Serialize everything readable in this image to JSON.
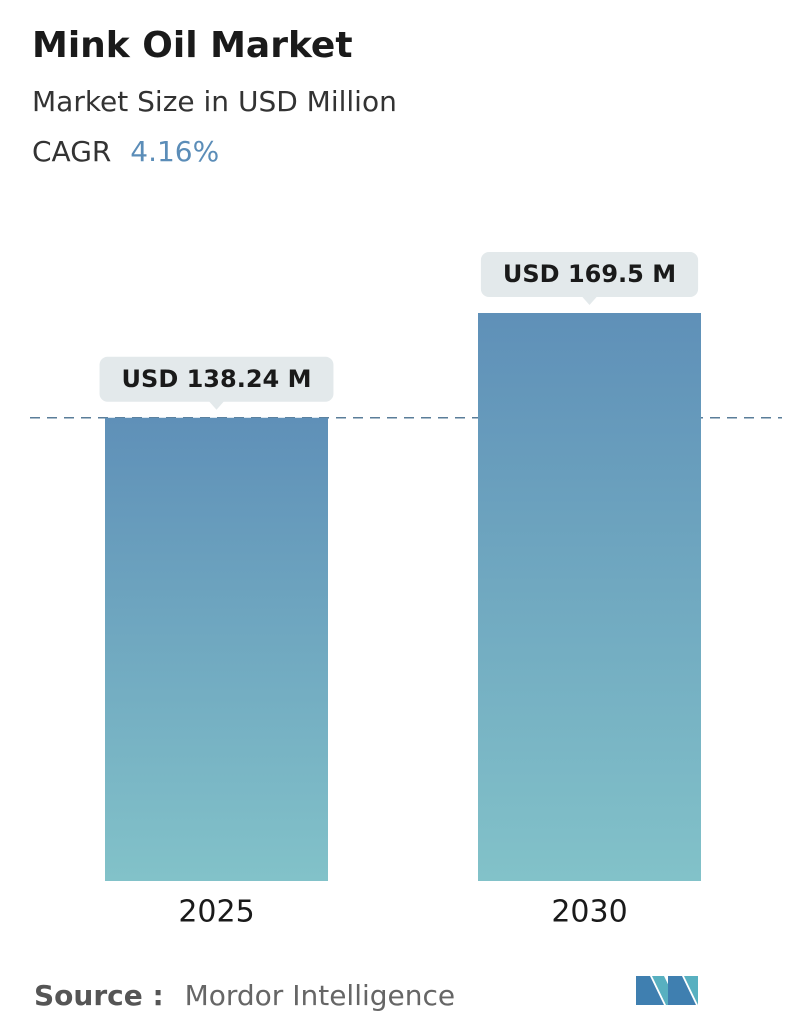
{
  "chart_data": {
    "type": "bar",
    "title": "Mink Oil Market",
    "subtitle": "Market Size in USD Million",
    "cagr_label": "CAGR",
    "cagr": "4.16%",
    "categories": [
      "2025",
      "2030"
    ],
    "values": [
      138.24,
      169.5
    ],
    "value_labels": [
      "USD 138.24 M",
      "USD 169.5 M"
    ],
    "source_label": "Source :",
    "source": "Mordor Intelligence"
  }
}
